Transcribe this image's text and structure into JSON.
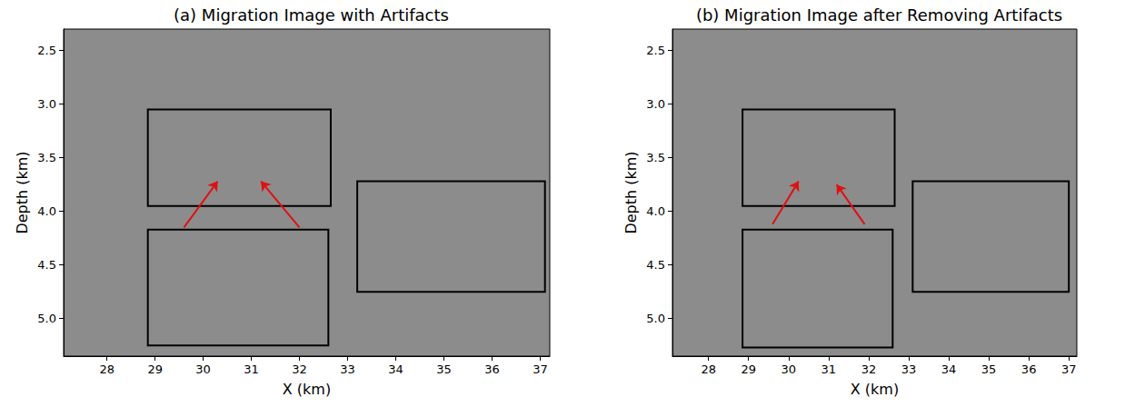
{
  "chart_data": [
    {
      "type": "image",
      "title": "(a) Migration Image with Artifacts",
      "x_label": "X (km)",
      "y_label": "Depth (km)",
      "xlim": [
        27.1,
        37.2
      ],
      "ylim": [
        2.3,
        5.35
      ],
      "xticks": [
        28,
        29,
        30,
        31,
        32,
        33,
        34,
        35,
        36,
        37
      ],
      "yticks": [
        2.5,
        {
          "value": 3,
          "label": "3.0"
        },
        3.5,
        {
          "value": 4,
          "label": "4.0"
        },
        4.5,
        {
          "value": 5,
          "label": "5.0"
        }
      ],
      "grid": false,
      "series": [
        {
          "type": "box",
          "color": "#000000",
          "values": [
            [
              28.85,
              3.05,
              32.65,
              3.95
            ],
            [
              28.85,
              4.17,
              32.6,
              5.25
            ],
            [
              33.2,
              3.72,
              37.1,
              4.75
            ]
          ]
        },
        {
          "type": "arrow",
          "color": "#e01010",
          "values": [
            [
              29.6,
              4.15,
              30.3,
              3.72
            ],
            [
              32.0,
              4.15,
              31.2,
              3.72
            ]
          ]
        }
      ]
    },
    {
      "type": "image",
      "title": "(b) Migration Image after Removing Artifacts",
      "x_label": "X (km)",
      "y_label": "Depth (km)",
      "xlim": [
        27.1,
        37.2
      ],
      "ylim": [
        2.3,
        5.35
      ],
      "xticks": [
        28,
        29,
        30,
        31,
        32,
        33,
        34,
        35,
        36,
        37
      ],
      "yticks": [
        2.5,
        {
          "value": 3,
          "label": "3.0"
        },
        3.5,
        {
          "value": 4,
          "label": "4.0"
        },
        4.5,
        {
          "value": 5,
          "label": "5.0"
        }
      ],
      "grid": false,
      "series": [
        {
          "type": "box",
          "color": "#000000",
          "values": [
            [
              28.85,
              3.05,
              32.65,
              3.95
            ],
            [
              28.85,
              4.17,
              32.6,
              5.27
            ],
            [
              33.1,
              3.72,
              37.0,
              4.75
            ]
          ]
        },
        {
          "type": "arrow",
          "color": "#e01010",
          "values": [
            [
              29.6,
              4.12,
              30.25,
              3.72
            ],
            [
              31.9,
              4.12,
              31.2,
              3.75
            ]
          ]
        }
      ]
    }
  ]
}
